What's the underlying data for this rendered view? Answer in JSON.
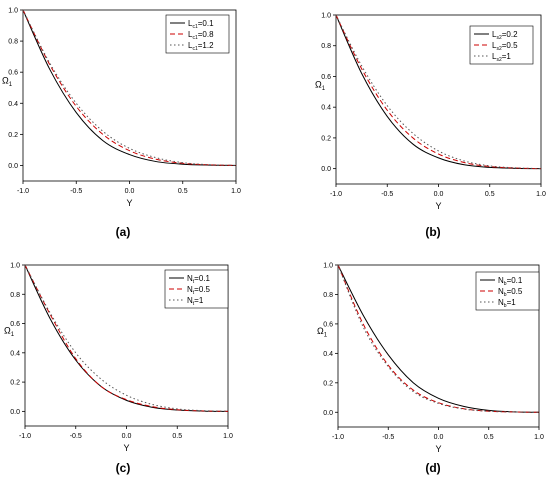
{
  "chart_data": [
    {
      "type": "line",
      "caption": "(a)",
      "xlabel": "Y",
      "ylabel": {
        "base": "Ω",
        "sub": "1"
      },
      "xlim": [
        -1.0,
        1.0
      ],
      "ylim": [
        -0.1,
        1.0
      ],
      "xticks": [
        "-1.0",
        "-0.5",
        "0.0",
        "0.5",
        "1.0"
      ],
      "yticks": [
        "0.0",
        "0.2",
        "0.4",
        "0.6",
        "0.8",
        "1.0"
      ],
      "x": [
        -1.0,
        -0.75,
        -0.5,
        -0.25,
        0.0,
        0.25,
        0.5,
        0.75,
        1.0
      ],
      "legend_position": "top-right",
      "series": [
        {
          "name": {
            "base": "L",
            "sub": "c1",
            "rest": "=0.1"
          },
          "style": "solid",
          "color": "#000000",
          "values": [
            1.0,
            0.62,
            0.34,
            0.16,
            0.07,
            0.025,
            0.008,
            0.002,
            0.0
          ]
        },
        {
          "name": {
            "base": "L",
            "sub": "c1",
            "rest": "=0.8"
          },
          "style": "dashed",
          "color": "#cc0000",
          "values": [
            1.0,
            0.65,
            0.38,
            0.2,
            0.095,
            0.04,
            0.014,
            0.004,
            0.0
          ]
        },
        {
          "name": {
            "base": "L",
            "sub": "c1",
            "rest": "=1.2"
          },
          "style": "dotted",
          "color": "#555555",
          "values": [
            1.0,
            0.66,
            0.4,
            0.22,
            0.11,
            0.05,
            0.018,
            0.005,
            0.0
          ]
        }
      ]
    },
    {
      "type": "line",
      "caption": "(b)",
      "xlabel": "Y",
      "ylabel": {
        "base": "Ω",
        "sub": "1"
      },
      "xlim": [
        -1.0,
        1.0
      ],
      "ylim": [
        -0.1,
        1.0
      ],
      "xticks": [
        "-1.0",
        "-0.5",
        "0.0",
        "0.5",
        "1.0"
      ],
      "yticks": [
        "0.0",
        "0.2",
        "0.4",
        "0.6",
        "0.8",
        "1.0"
      ],
      "x": [
        -1.0,
        -0.75,
        -0.5,
        -0.25,
        0.0,
        0.25,
        0.5,
        0.75,
        1.0
      ],
      "legend_position": "top-right",
      "series": [
        {
          "name": {
            "base": "L",
            "sub": "s2",
            "rest": "=0.2"
          },
          "style": "solid",
          "color": "#000000",
          "values": [
            1.0,
            0.62,
            0.34,
            0.16,
            0.07,
            0.025,
            0.008,
            0.002,
            0.0
          ]
        },
        {
          "name": {
            "base": "L",
            "sub": "s2",
            "rest": "=0.5"
          },
          "style": "dashed",
          "color": "#cc0000",
          "values": [
            1.0,
            0.65,
            0.38,
            0.2,
            0.095,
            0.04,
            0.014,
            0.004,
            0.0
          ]
        },
        {
          "name": {
            "base": "L",
            "sub": "s2",
            "rest": "=1"
          },
          "style": "dotted",
          "color": "#555555",
          "values": [
            1.0,
            0.67,
            0.41,
            0.23,
            0.115,
            0.05,
            0.018,
            0.005,
            0.0
          ]
        }
      ]
    },
    {
      "type": "line",
      "caption": "(c)",
      "xlabel": "Y",
      "ylabel": {
        "base": "Ω",
        "sub": "1"
      },
      "xlim": [
        -1.0,
        1.0
      ],
      "ylim": [
        -0.1,
        1.0
      ],
      "xticks": [
        "-1.0",
        "-0.5",
        "0.0",
        "0.5",
        "1.0"
      ],
      "yticks": [
        "0.0",
        "0.2",
        "0.4",
        "0.6",
        "0.8",
        "1.0"
      ],
      "x": [
        -1.0,
        -0.75,
        -0.5,
        -0.25,
        0.0,
        0.25,
        0.5,
        0.75,
        1.0
      ],
      "legend_position": "top-right",
      "series": [
        {
          "name": {
            "base": "N",
            "sub": "t",
            "rest": "=0.1"
          },
          "style": "solid",
          "color": "#000000",
          "values": [
            1.0,
            0.63,
            0.35,
            0.17,
            0.075,
            0.028,
            0.009,
            0.002,
            0.0
          ]
        },
        {
          "name": {
            "base": "N",
            "sub": "t",
            "rest": "=0.5"
          },
          "style": "dashed",
          "color": "#cc0000",
          "values": [
            1.0,
            0.66,
            0.36,
            0.17,
            0.08,
            0.033,
            0.011,
            0.003,
            0.0
          ]
        },
        {
          "name": {
            "base": "N",
            "sub": "t",
            "rest": "=1"
          },
          "style": "dotted",
          "color": "#555555",
          "values": [
            1.0,
            0.67,
            0.4,
            0.22,
            0.11,
            0.048,
            0.017,
            0.005,
            0.0
          ]
        }
      ]
    },
    {
      "type": "line",
      "caption": "(d)",
      "xlabel": "Y",
      "ylabel": {
        "base": "Ω",
        "sub": "1"
      },
      "xlim": [
        -1.0,
        1.0
      ],
      "ylim": [
        -0.1,
        1.0
      ],
      "xticks": [
        "-1.0",
        "-0.5",
        "0.0",
        "0.5",
        "1.0"
      ],
      "yticks": [
        "0.0",
        "0.2",
        "0.4",
        "0.6",
        "0.8",
        "1.0"
      ],
      "x": [
        -1.0,
        -0.75,
        -0.5,
        -0.25,
        0.0,
        0.25,
        0.5,
        0.75,
        1.0
      ],
      "legend_position": "top-right",
      "series": [
        {
          "name": {
            "base": "N",
            "sub": "b",
            "rest": "=0.1"
          },
          "style": "solid",
          "color": "#000000",
          "values": [
            1.0,
            0.66,
            0.39,
            0.2,
            0.095,
            0.04,
            0.013,
            0.003,
            0.0
          ]
        },
        {
          "name": {
            "base": "N",
            "sub": "b",
            "rest": "=0.5"
          },
          "style": "dashed",
          "color": "#cc0000",
          "values": [
            1.0,
            0.6,
            0.32,
            0.15,
            0.065,
            0.024,
            0.007,
            0.002,
            0.0
          ]
        },
        {
          "name": {
            "base": "N",
            "sub": "b",
            "rest": "=1"
          },
          "style": "dotted",
          "color": "#555555",
          "values": [
            1.0,
            0.58,
            0.31,
            0.14,
            0.06,
            0.022,
            0.007,
            0.002,
            0.0
          ]
        }
      ]
    }
  ]
}
